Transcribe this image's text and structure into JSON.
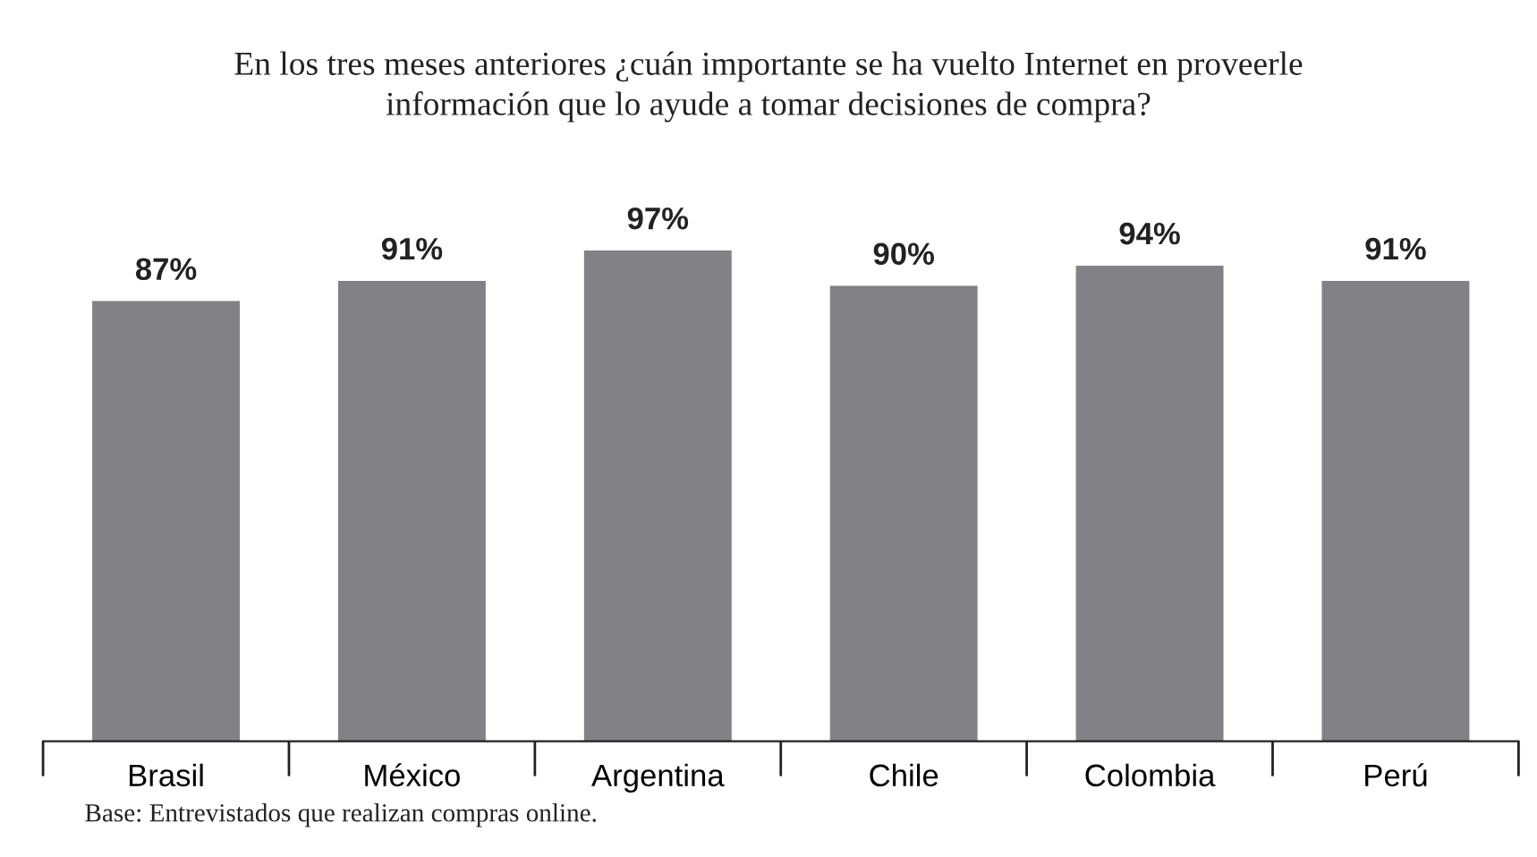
{
  "chart_data": {
    "type": "bar",
    "title": "En los tres meses anteriores ¿cuán importante se ha vuelto Internet en proveerle\ninformación que lo ayude a tomar decisiones de compra?",
    "categories": [
      "Brasil",
      "México",
      "Argentina",
      "Chile",
      "Colombia",
      "Perú"
    ],
    "values": [
      87,
      91,
      97,
      90,
      94,
      91
    ],
    "value_labels": [
      "87%",
      "91%",
      "97%",
      "90%",
      "94%",
      "91%"
    ],
    "color": "#818285",
    "grid": false,
    "tick_labels": "x",
    "annotations": [
      "Base: Entrevistados que realizan compras online."
    ]
  }
}
